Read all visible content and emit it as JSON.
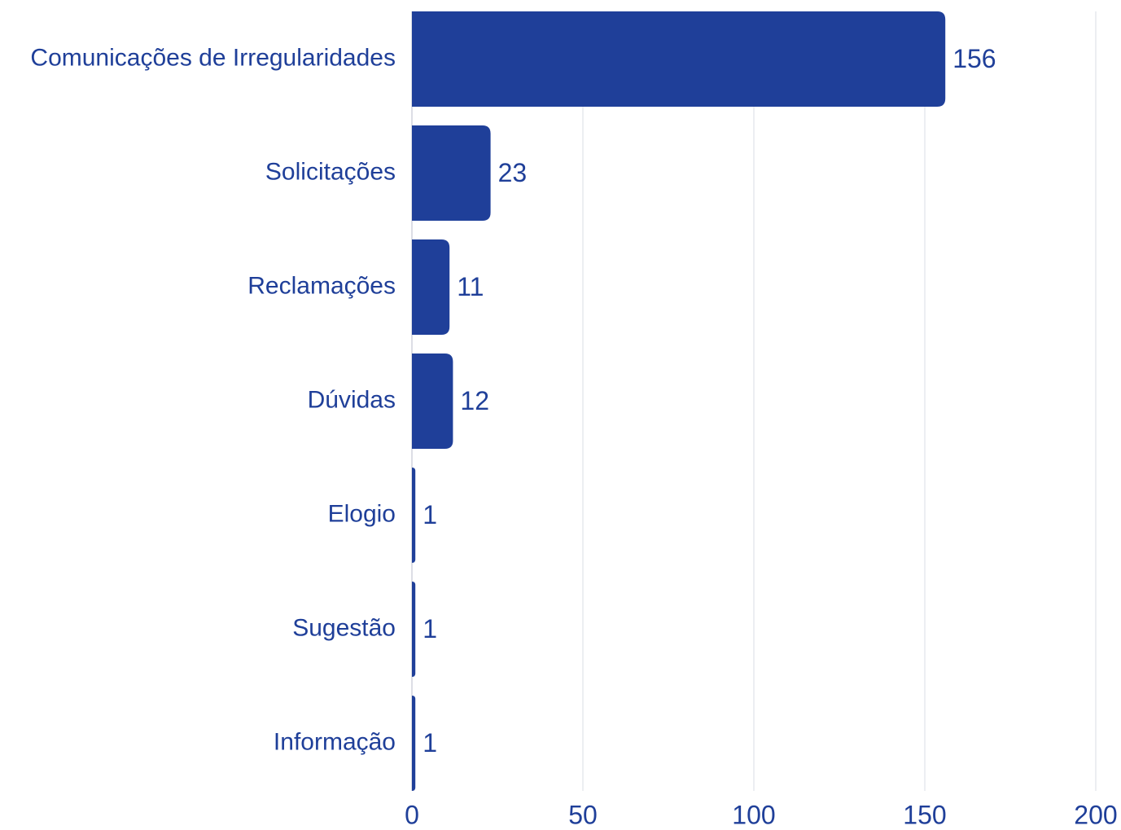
{
  "chart_data": {
    "type": "bar",
    "orientation": "horizontal",
    "categories": [
      "Comunicações de Irregularidades",
      "Solicitações",
      "Reclamações",
      "Dúvidas",
      "Elogio",
      "Sugestão",
      "Informação"
    ],
    "values": [
      156,
      23,
      11,
      12,
      1,
      1,
      1
    ],
    "color": "#1f3f99",
    "xlim": [
      0,
      200
    ],
    "xticks": [
      0,
      50,
      100,
      150,
      200
    ],
    "grid": true
  }
}
